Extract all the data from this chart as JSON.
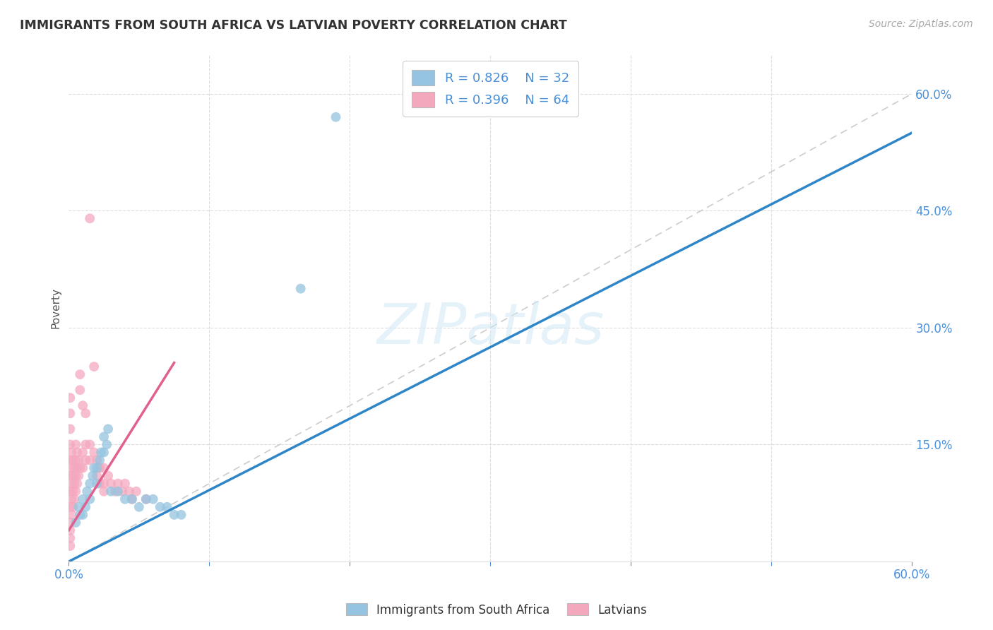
{
  "title": "IMMIGRANTS FROM SOUTH AFRICA VS LATVIAN POVERTY CORRELATION CHART",
  "source": "Source: ZipAtlas.com",
  "ylabel": "Poverty",
  "xlim": [
    0,
    0.6
  ],
  "ylim": [
    0,
    0.65
  ],
  "xticks": [
    0.0,
    0.1,
    0.2,
    0.3,
    0.4,
    0.5,
    0.6
  ],
  "yticks": [
    0.0,
    0.15,
    0.3,
    0.45,
    0.6
  ],
  "blue_R": 0.826,
  "blue_N": 32,
  "pink_R": 0.396,
  "pink_N": 64,
  "legend_label_blue": "Immigrants from South Africa",
  "legend_label_pink": "Latvians",
  "watermark": "ZIPatlas",
  "blue_color": "#94c4e0",
  "pink_color": "#f4a8be",
  "blue_line_color": "#2e86c8",
  "pink_line_color": "#e06090",
  "ref_line_color": "#cccccc",
  "tick_color": "#4a90d9",
  "blue_scatter": [
    [
      0.005,
      0.05
    ],
    [
      0.007,
      0.07
    ],
    [
      0.008,
      0.06
    ],
    [
      0.01,
      0.06
    ],
    [
      0.01,
      0.08
    ],
    [
      0.012,
      0.07
    ],
    [
      0.013,
      0.09
    ],
    [
      0.015,
      0.1
    ],
    [
      0.015,
      0.08
    ],
    [
      0.017,
      0.11
    ],
    [
      0.018,
      0.12
    ],
    [
      0.02,
      0.12
    ],
    [
      0.02,
      0.1
    ],
    [
      0.022,
      0.13
    ],
    [
      0.023,
      0.14
    ],
    [
      0.025,
      0.14
    ],
    [
      0.025,
      0.16
    ],
    [
      0.027,
      0.15
    ],
    [
      0.028,
      0.17
    ],
    [
      0.03,
      0.09
    ],
    [
      0.035,
      0.09
    ],
    [
      0.04,
      0.08
    ],
    [
      0.045,
      0.08
    ],
    [
      0.05,
      0.07
    ],
    [
      0.055,
      0.08
    ],
    [
      0.06,
      0.08
    ],
    [
      0.065,
      0.07
    ],
    [
      0.07,
      0.07
    ],
    [
      0.075,
      0.06
    ],
    [
      0.08,
      0.06
    ],
    [
      0.165,
      0.35
    ],
    [
      0.19,
      0.57
    ]
  ],
  "pink_scatter": [
    [
      0.001,
      0.05
    ],
    [
      0.001,
      0.07
    ],
    [
      0.001,
      0.09
    ],
    [
      0.001,
      0.11
    ],
    [
      0.001,
      0.13
    ],
    [
      0.001,
      0.15
    ],
    [
      0.001,
      0.17
    ],
    [
      0.001,
      0.19
    ],
    [
      0.001,
      0.21
    ],
    [
      0.001,
      0.04
    ],
    [
      0.001,
      0.03
    ],
    [
      0.001,
      0.02
    ],
    [
      0.002,
      0.06
    ],
    [
      0.002,
      0.08
    ],
    [
      0.002,
      0.1
    ],
    [
      0.002,
      0.12
    ],
    [
      0.002,
      0.14
    ],
    [
      0.003,
      0.07
    ],
    [
      0.003,
      0.09
    ],
    [
      0.003,
      0.11
    ],
    [
      0.003,
      0.13
    ],
    [
      0.004,
      0.08
    ],
    [
      0.004,
      0.1
    ],
    [
      0.004,
      0.12
    ],
    [
      0.005,
      0.09
    ],
    [
      0.005,
      0.11
    ],
    [
      0.005,
      0.13
    ],
    [
      0.005,
      0.15
    ],
    [
      0.006,
      0.1
    ],
    [
      0.006,
      0.12
    ],
    [
      0.006,
      0.14
    ],
    [
      0.007,
      0.11
    ],
    [
      0.007,
      0.13
    ],
    [
      0.008,
      0.12
    ],
    [
      0.008,
      0.22
    ],
    [
      0.008,
      0.24
    ],
    [
      0.01,
      0.12
    ],
    [
      0.01,
      0.14
    ],
    [
      0.01,
      0.2
    ],
    [
      0.012,
      0.13
    ],
    [
      0.012,
      0.15
    ],
    [
      0.012,
      0.19
    ],
    [
      0.015,
      0.13
    ],
    [
      0.015,
      0.15
    ],
    [
      0.018,
      0.14
    ],
    [
      0.018,
      0.25
    ],
    [
      0.02,
      0.13
    ],
    [
      0.02,
      0.11
    ],
    [
      0.022,
      0.12
    ],
    [
      0.022,
      0.1
    ],
    [
      0.025,
      0.12
    ],
    [
      0.025,
      0.1
    ],
    [
      0.028,
      0.11
    ],
    [
      0.03,
      0.1
    ],
    [
      0.033,
      0.09
    ],
    [
      0.035,
      0.1
    ],
    [
      0.038,
      0.09
    ],
    [
      0.04,
      0.1
    ],
    [
      0.043,
      0.09
    ],
    [
      0.015,
      0.44
    ],
    [
      0.045,
      0.08
    ],
    [
      0.048,
      0.09
    ],
    [
      0.025,
      0.09
    ],
    [
      0.055,
      0.08
    ]
  ],
  "blue_line_x": [
    0.0,
    0.6
  ],
  "blue_line_y": [
    0.0,
    0.55
  ],
  "pink_line_x": [
    0.0,
    0.075
  ],
  "pink_line_y": [
    0.04,
    0.255
  ]
}
